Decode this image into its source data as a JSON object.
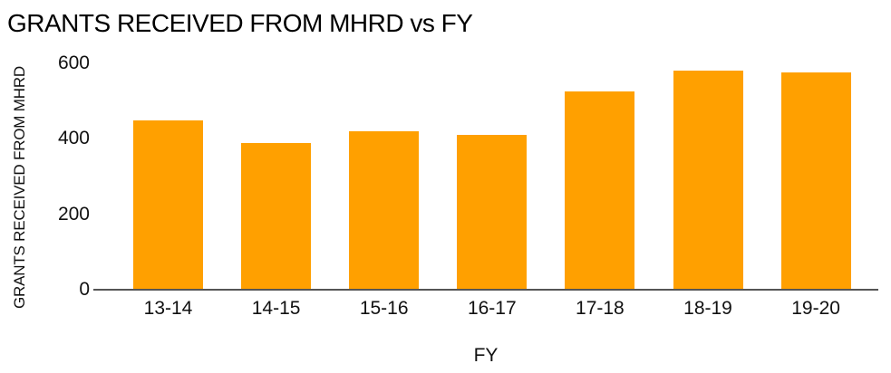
{
  "chart_data": {
    "type": "bar",
    "title": "GRANTS RECEIVED FROM MHRD vs FY",
    "xlabel": "FY",
    "ylabel": "GRANTS RECEIVED FROM MHRD",
    "categories": [
      "13-14",
      "14-15",
      "15-16",
      "16-17",
      "17-18",
      "18-19",
      "19-20"
    ],
    "values": [
      450,
      390,
      420,
      410,
      525,
      580,
      575
    ],
    "ylim": [
      0,
      600
    ],
    "yticks": [
      0,
      200,
      400,
      600
    ],
    "grid": false,
    "legend": false,
    "colors": {
      "bar": "#FFA000",
      "axis_line": "#555555",
      "text": "#111111"
    }
  }
}
